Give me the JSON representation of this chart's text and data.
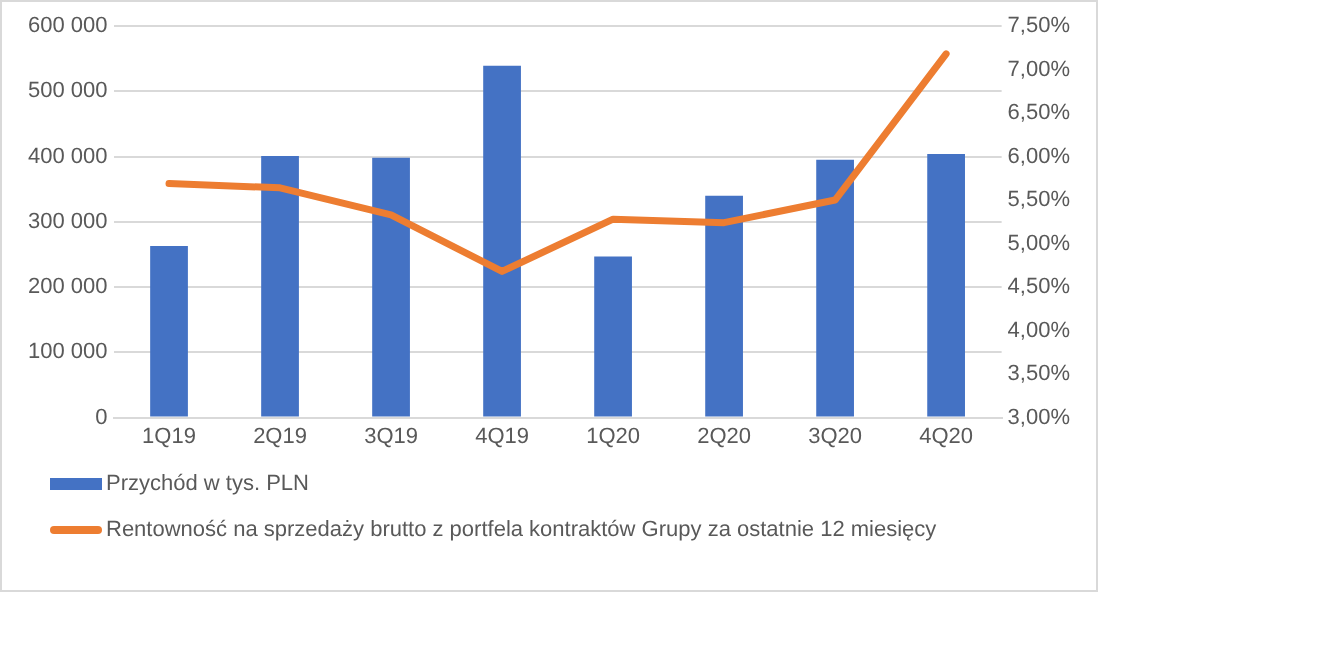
{
  "chart_data": {
    "type": "bar",
    "categories": [
      "1Q19",
      "2Q19",
      "3Q19",
      "4Q19",
      "1Q20",
      "2Q20",
      "3Q20",
      "4Q20"
    ],
    "series": [
      {
        "name": "Przychód w tys. PLN",
        "color": "#4472c4",
        "values": [
          263000,
          401000,
          398000,
          539000,
          247000,
          340000,
          395000,
          404000
        ]
      },
      {
        "name": "Rentowność na sprzedaży brutto z portfela kontraktów Grupy za ostatnie 12 miesięcy",
        "type": "line",
        "axis": "y2",
        "color": "#ed7d31",
        "values": [
          5.69,
          5.64,
          5.33,
          4.68,
          5.28,
          5.24,
          5.5,
          7.18
        ]
      }
    ],
    "ylim": [
      0,
      600000
    ],
    "yticks": [
      0,
      {
        "value": 100000,
        "label": "100 000"
      },
      {
        "value": 200000,
        "label": "200 000"
      },
      {
        "value": 300000,
        "label": "300 000"
      },
      {
        "value": 400000,
        "label": "400 000"
      },
      {
        "value": 500000,
        "label": "500 000"
      },
      {
        "value": 600000,
        "label": "600 000"
      }
    ],
    "y2lim": [
      3,
      7.5
    ],
    "y2ticks": [
      {
        "value": 3,
        "label": "3,00%"
      },
      {
        "value": 3.5,
        "label": "3,50%"
      },
      {
        "value": 4,
        "label": "4,00%"
      },
      {
        "value": 4.5,
        "label": "4,50%"
      },
      {
        "value": 5,
        "label": "5,00%"
      },
      {
        "value": 5.5,
        "label": "5,50%"
      },
      {
        "value": 6,
        "label": "6,00%"
      },
      {
        "value": 6.5,
        "label": "6,50%"
      },
      {
        "value": 7,
        "label": "7,00%"
      },
      {
        "value": 7.5,
        "label": "7,50%"
      }
    ],
    "grid": "y",
    "legend": "bottom",
    "marker": "none",
    "line_style": "solid"
  }
}
